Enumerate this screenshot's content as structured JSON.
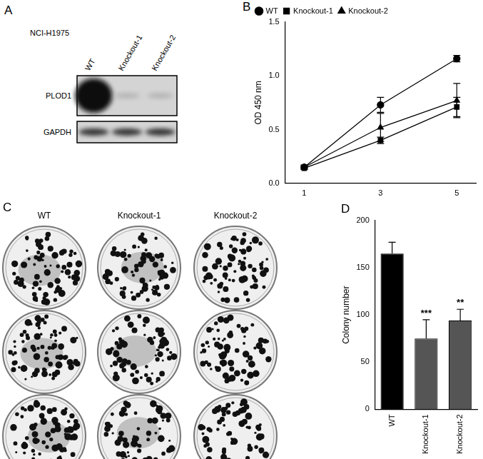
{
  "chart_data": [
    {
      "type": "line",
      "title": "B",
      "y_label": "OD 450 nm",
      "x": [
        1,
        3,
        5
      ],
      "xlim": [
        0.5,
        5.5
      ],
      "xticks": [
        1,
        3,
        5
      ],
      "ylim": [
        0,
        1.5
      ],
      "yticks": [
        {
          "value": 0,
          "label": "0.0"
        },
        {
          "value": 0.5,
          "label": "0.5"
        },
        {
          "value": 1,
          "label": "1.0"
        },
        {
          "value": 1.5,
          "label": "1.5"
        }
      ],
      "grid": false,
      "legend": "upper left",
      "series": [
        {
          "name": "WT",
          "color": "#000000",
          "marker": "circle",
          "values": [
            0.15,
            0.73,
            1.16
          ],
          "errors": [
            0.02,
            0.07,
            0.03
          ]
        },
        {
          "name": "Knockout-1",
          "color": "#000000",
          "marker": "square",
          "values": [
            0.14,
            0.4,
            0.71
          ],
          "errors": [
            0.01,
            0.03,
            0.09
          ]
        },
        {
          "name": "Knockout-2",
          "color": "#000000",
          "marker": "triangle",
          "values": [
            0.15,
            0.52,
            0.77
          ],
          "errors": [
            0.01,
            0.13,
            0.16
          ]
        }
      ]
    },
    {
      "type": "bar",
      "title": "D",
      "y_label": "Colony number",
      "categories": [
        "WT",
        "Knockout-1",
        "Knockout-2"
      ],
      "values": [
        165,
        75,
        94
      ],
      "errors": [
        12,
        20,
        12
      ],
      "colors": [
        "#000000",
        "#555555",
        "#555555"
      ],
      "ylim": [
        0,
        200
      ],
      "yticks": [
        0,
        50,
        100,
        150,
        200
      ],
      "grid": false,
      "annotations": [
        {
          "category": "Knockout-1",
          "text": "***"
        },
        {
          "category": "Knockout-2",
          "text": "**"
        }
      ]
    }
  ],
  "blot": {
    "title": "A",
    "cell_line": "NCI-H1975",
    "lanes": [
      "WT",
      "Knockout-1",
      "Knockout-2"
    ],
    "bands": [
      "PLOD1",
      "GAPDH"
    ]
  },
  "colony_images": {
    "title": "C",
    "columns": [
      "WT",
      "Knockout-1",
      "Knockout-2"
    ],
    "rows": 3
  }
}
